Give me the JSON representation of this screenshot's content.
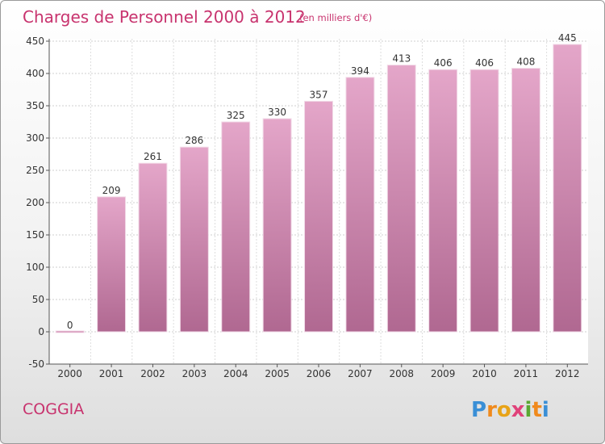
{
  "chart_data": {
    "type": "bar",
    "title": "Charges de Personnel 2000 à 2012",
    "subtitle": "(en milliers d'€)",
    "categories": [
      "2000",
      "2001",
      "2002",
      "2003",
      "2004",
      "2005",
      "2006",
      "2007",
      "2008",
      "2009",
      "2010",
      "2011",
      "2012"
    ],
    "values": [
      0,
      209,
      261,
      286,
      325,
      330,
      357,
      394,
      413,
      406,
      406,
      408,
      445
    ],
    "ylim": [
      -50,
      450
    ],
    "yticks": [
      -50,
      0,
      50,
      100,
      150,
      200,
      250,
      300,
      350,
      400,
      450
    ],
    "grid": true,
    "bar_color": "#c978a6",
    "title_color": "#c8336e"
  },
  "commune": "COGGIA",
  "logo": {
    "letters": [
      "P",
      "r",
      "o",
      "x",
      "i",
      "t",
      "i"
    ],
    "colors": [
      "#3a8fd6",
      "#f08a1c",
      "#e8a317",
      "#e0427a",
      "#5aa832",
      "#f08a1c",
      "#3a8fd6"
    ]
  }
}
